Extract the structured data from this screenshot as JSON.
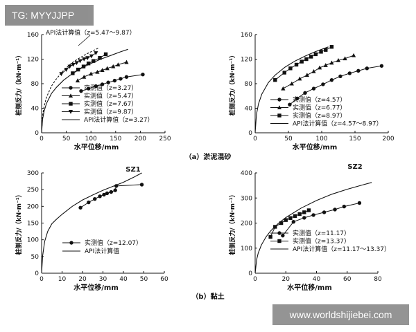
{
  "overlays": {
    "tag": "TG: MYYJJPP",
    "watermark": "www.worldshijiebei.com"
  },
  "captions": {
    "a": "（a）淤泥混砂",
    "b": "（b）黏土"
  },
  "chart_data": [
    {
      "id": "a-left",
      "type": "line",
      "ylabel": "桩侧反力/（kN·m⁻¹）",
      "xlabel": "水平位移/mm",
      "xlim": [
        0,
        250
      ],
      "ylim": [
        0,
        160
      ],
      "xticks": [
        "0",
        "50",
        "100",
        "150",
        "200",
        "250"
      ],
      "yticks": [
        "0",
        "40",
        "80",
        "120",
        "160"
      ],
      "series": [
        {
          "name": "实测值（z=3.27）",
          "marker": "circle",
          "x": [
            80,
            95,
            110,
            123,
            135,
            148,
            160,
            172,
            205
          ],
          "y": [
            68,
            72,
            76,
            79,
            82,
            85,
            88,
            91,
            95
          ]
        },
        {
          "name": "实测值（z=5.47）",
          "marker": "triangle",
          "x": [
            73,
            86,
            100,
            113,
            123,
            133,
            145,
            155,
            172
          ],
          "y": [
            85,
            91,
            96,
            99,
            102,
            105,
            108,
            111,
            115
          ]
        },
        {
          "name": "实测值（z=7.67）",
          "marker": "square",
          "x": [
            63,
            74,
            85,
            95,
            105,
            118,
            130
          ],
          "y": [
            97,
            103,
            108,
            113,
            117,
            122,
            128
          ]
        },
        {
          "name": "实测值（z=9.87）",
          "marker": "inverted-triangle",
          "x": [
            40,
            50,
            57,
            64,
            71,
            78,
            86,
            93,
            101,
            110
          ],
          "y": [
            96,
            103,
            108,
            111,
            114,
            117,
            120,
            122,
            125,
            130
          ]
        },
        {
          "name": "API法计算值（z=3.27）",
          "line": "solid",
          "x": [
            0,
            2,
            5,
            10,
            20,
            30,
            45,
            60,
            80,
            100,
            120,
            140,
            160,
            175
          ],
          "y": [
            0,
            22,
            35,
            48,
            64,
            74,
            86,
            95,
            105,
            113,
            120,
            126,
            132,
            136
          ]
        },
        {
          "name": "API法计算值（z=5.47～9.87）",
          "line": "dashed",
          "x": [
            0,
            2,
            5,
            10,
            20,
            30,
            45,
            60,
            75,
            90,
            105,
            115
          ],
          "y": [
            0,
            28,
            43,
            58,
            76,
            88,
            102,
            113,
            121,
            128,
            134,
            138
          ]
        }
      ],
      "annotations": [
        {
          "text": "API法计算值（z=5.47～9.87）",
          "kind": "callout"
        }
      ]
    },
    {
      "id": "a-right",
      "type": "line",
      "ylabel": "桩侧反力/（kN·m⁻¹）",
      "xlabel": "水平位移/mm",
      "xlim": [
        0,
        200
      ],
      "ylim": [
        0,
        160
      ],
      "xticks": [
        "0",
        "50",
        "100",
        "150",
        "200"
      ],
      "yticks": [
        "0",
        "40",
        "80",
        "120",
        "160"
      ],
      "series": [
        {
          "name": "实测值（z=4.57）",
          "marker": "circle",
          "x": [
            52,
            63,
            75,
            88,
            102,
            115,
            128,
            142,
            155,
            168,
            190
          ],
          "y": [
            46,
            56,
            65,
            72,
            79,
            86,
            92,
            97,
            101,
            105,
            109
          ]
        },
        {
          "name": "实测值（z=6.77）",
          "marker": "triangle",
          "x": [
            42,
            55,
            67,
            78,
            88,
            97,
            106,
            115,
            125,
            135,
            148
          ],
          "y": [
            72,
            80,
            88,
            94,
            100,
            106,
            110,
            114,
            118,
            121,
            126
          ]
        },
        {
          "name": "实测值（z=8.97）",
          "marker": "square",
          "x": [
            30,
            44,
            53,
            62,
            70,
            77,
            84,
            91,
            99,
            106,
            115
          ],
          "y": [
            86,
            98,
            105,
            111,
            116,
            120,
            124,
            128,
            132,
            135,
            140
          ]
        },
        {
          "name": "API法计算值（z=4.57～8.97）",
          "line": "solid",
          "x": [
            0,
            2,
            5,
            10,
            20,
            30,
            45,
            60,
            75,
            90,
            100,
            110
          ],
          "y": [
            0,
            30,
            47,
            63,
            82,
            94,
            107,
            117,
            125,
            132,
            136,
            140
          ]
        }
      ]
    },
    {
      "id": "b-left",
      "type": "line",
      "title": "SZ1",
      "ylabel": "桩侧反力/（kN·m⁻¹）",
      "xlabel": "水平位移/mm",
      "xlim": [
        0,
        60
      ],
      "ylim": [
        0,
        300
      ],
      "xticks": [
        "0",
        "10",
        "20",
        "30",
        "40",
        "50",
        "60"
      ],
      "yticks": [
        "0",
        "50",
        "100",
        "150",
        "200",
        "250",
        "300"
      ],
      "series": [
        {
          "name": "实测值（z=12.07）",
          "marker": "circle",
          "x": [
            19,
            23,
            26,
            28.5,
            30.5,
            32,
            34,
            36,
            36.5,
            49
          ],
          "y": [
            196,
            212,
            222,
            230,
            235,
            239,
            243,
            248,
            261,
            265
          ]
        },
        {
          "name": "API法计算值",
          "line": "solid",
          "x": [
            0,
            0.5,
            1.5,
            3,
            5,
            7,
            10,
            15,
            20,
            25,
            30,
            35,
            40,
            45,
            49
          ],
          "y": [
            0,
            52,
            95,
            125,
            148,
            160,
            176,
            200,
            219,
            234,
            248,
            260,
            272,
            287,
            300
          ]
        }
      ]
    },
    {
      "id": "b-right",
      "type": "line",
      "title": "SZ2",
      "ylabel": "桩侧反力/（kN·m⁻¹）",
      "xlabel": "水平位移/mm",
      "xlim": [
        0,
        80
      ],
      "ylim": [
        0,
        400
      ],
      "xticks": [
        "0",
        "20",
        "40",
        "60",
        "80"
      ],
      "yticks": [
        "0",
        "100",
        "200",
        "300",
        "400"
      ],
      "series": [
        {
          "name": "实测值（z=11.17）",
          "marker": "circle",
          "x": [
            18,
            25,
            32,
            38,
            45,
            52,
            58,
            68
          ],
          "y": [
            150,
            205,
            221,
            232,
            243,
            254,
            266,
            280
          ]
        },
        {
          "name": "实测值（z=13.37）",
          "marker": "square",
          "x": [
            10,
            13,
            17,
            20,
            23,
            26,
            29,
            32,
            35
          ],
          "y": [
            145,
            185,
            200,
            212,
            220,
            228,
            236,
            243,
            251
          ]
        },
        {
          "name": "API法计算值（z=11.17～13.37）",
          "line": "solid",
          "x": [
            0,
            1,
            2,
            4,
            7,
            10,
            15,
            20,
            30,
            40,
            50,
            60,
            70,
            76
          ],
          "y": [
            0,
            55,
            80,
            112,
            144,
            168,
            198,
            222,
            260,
            290,
            315,
            335,
            352,
            362
          ]
        }
      ]
    }
  ]
}
